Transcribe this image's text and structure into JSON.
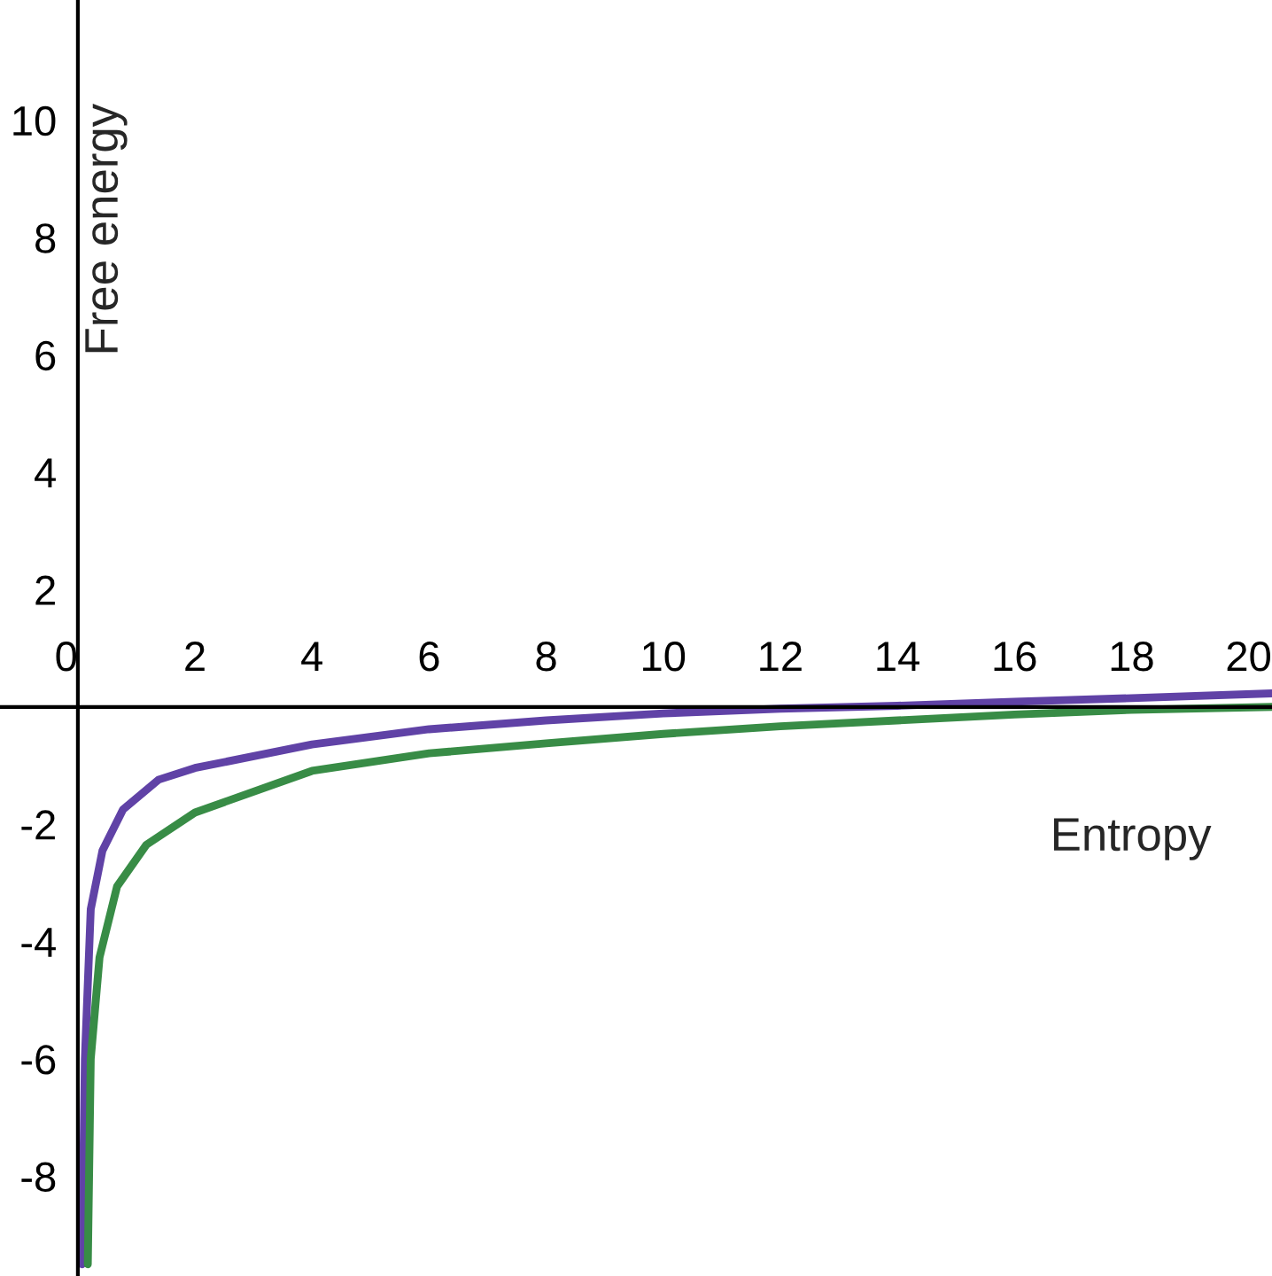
{
  "chart_data": {
    "type": "line",
    "xlabel": "Entropy",
    "ylabel": "Free energy",
    "xlim": [
      -1.33,
      20.4
    ],
    "ylim": [
      -9.7,
      12.05
    ],
    "xticks": [
      {
        "value": 0,
        "label": "0"
      },
      2,
      4,
      6,
      8,
      10,
      12,
      14,
      16,
      18,
      20
    ],
    "yticks": [
      -8,
      -6,
      -4,
      -2,
      2,
      4,
      6,
      8,
      10
    ],
    "legend": false,
    "marker": "none",
    "line_style": "solid",
    "series": [
      {
        "color": "#6042a6",
        "x": [
          0.07,
          0.12,
          0.22,
          0.42,
          0.77,
          1.38,
          2,
          4,
          6,
          8,
          10,
          12,
          14,
          16,
          18,
          20.4
        ],
        "values": [
          -9.5,
          -6.0,
          -3.45,
          -2.45,
          -1.75,
          -1.24,
          -1.04,
          -0.64,
          -0.38,
          -0.23,
          -0.11,
          -0.03,
          0.02,
          0.09,
          0.15,
          0.23
        ]
      },
      {
        "color": "#388c46",
        "x": [
          0.17,
          0.22,
          0.37,
          0.67,
          1.17,
          2,
          4,
          6,
          8,
          10,
          12,
          14,
          16,
          18,
          20.4
        ],
        "values": [
          -9.5,
          -6.0,
          -4.27,
          -3.06,
          -2.35,
          -1.8,
          -1.09,
          -0.79,
          -0.62,
          -0.46,
          -0.33,
          -0.23,
          -0.13,
          -0.05,
          0.0
        ]
      }
    ]
  }
}
